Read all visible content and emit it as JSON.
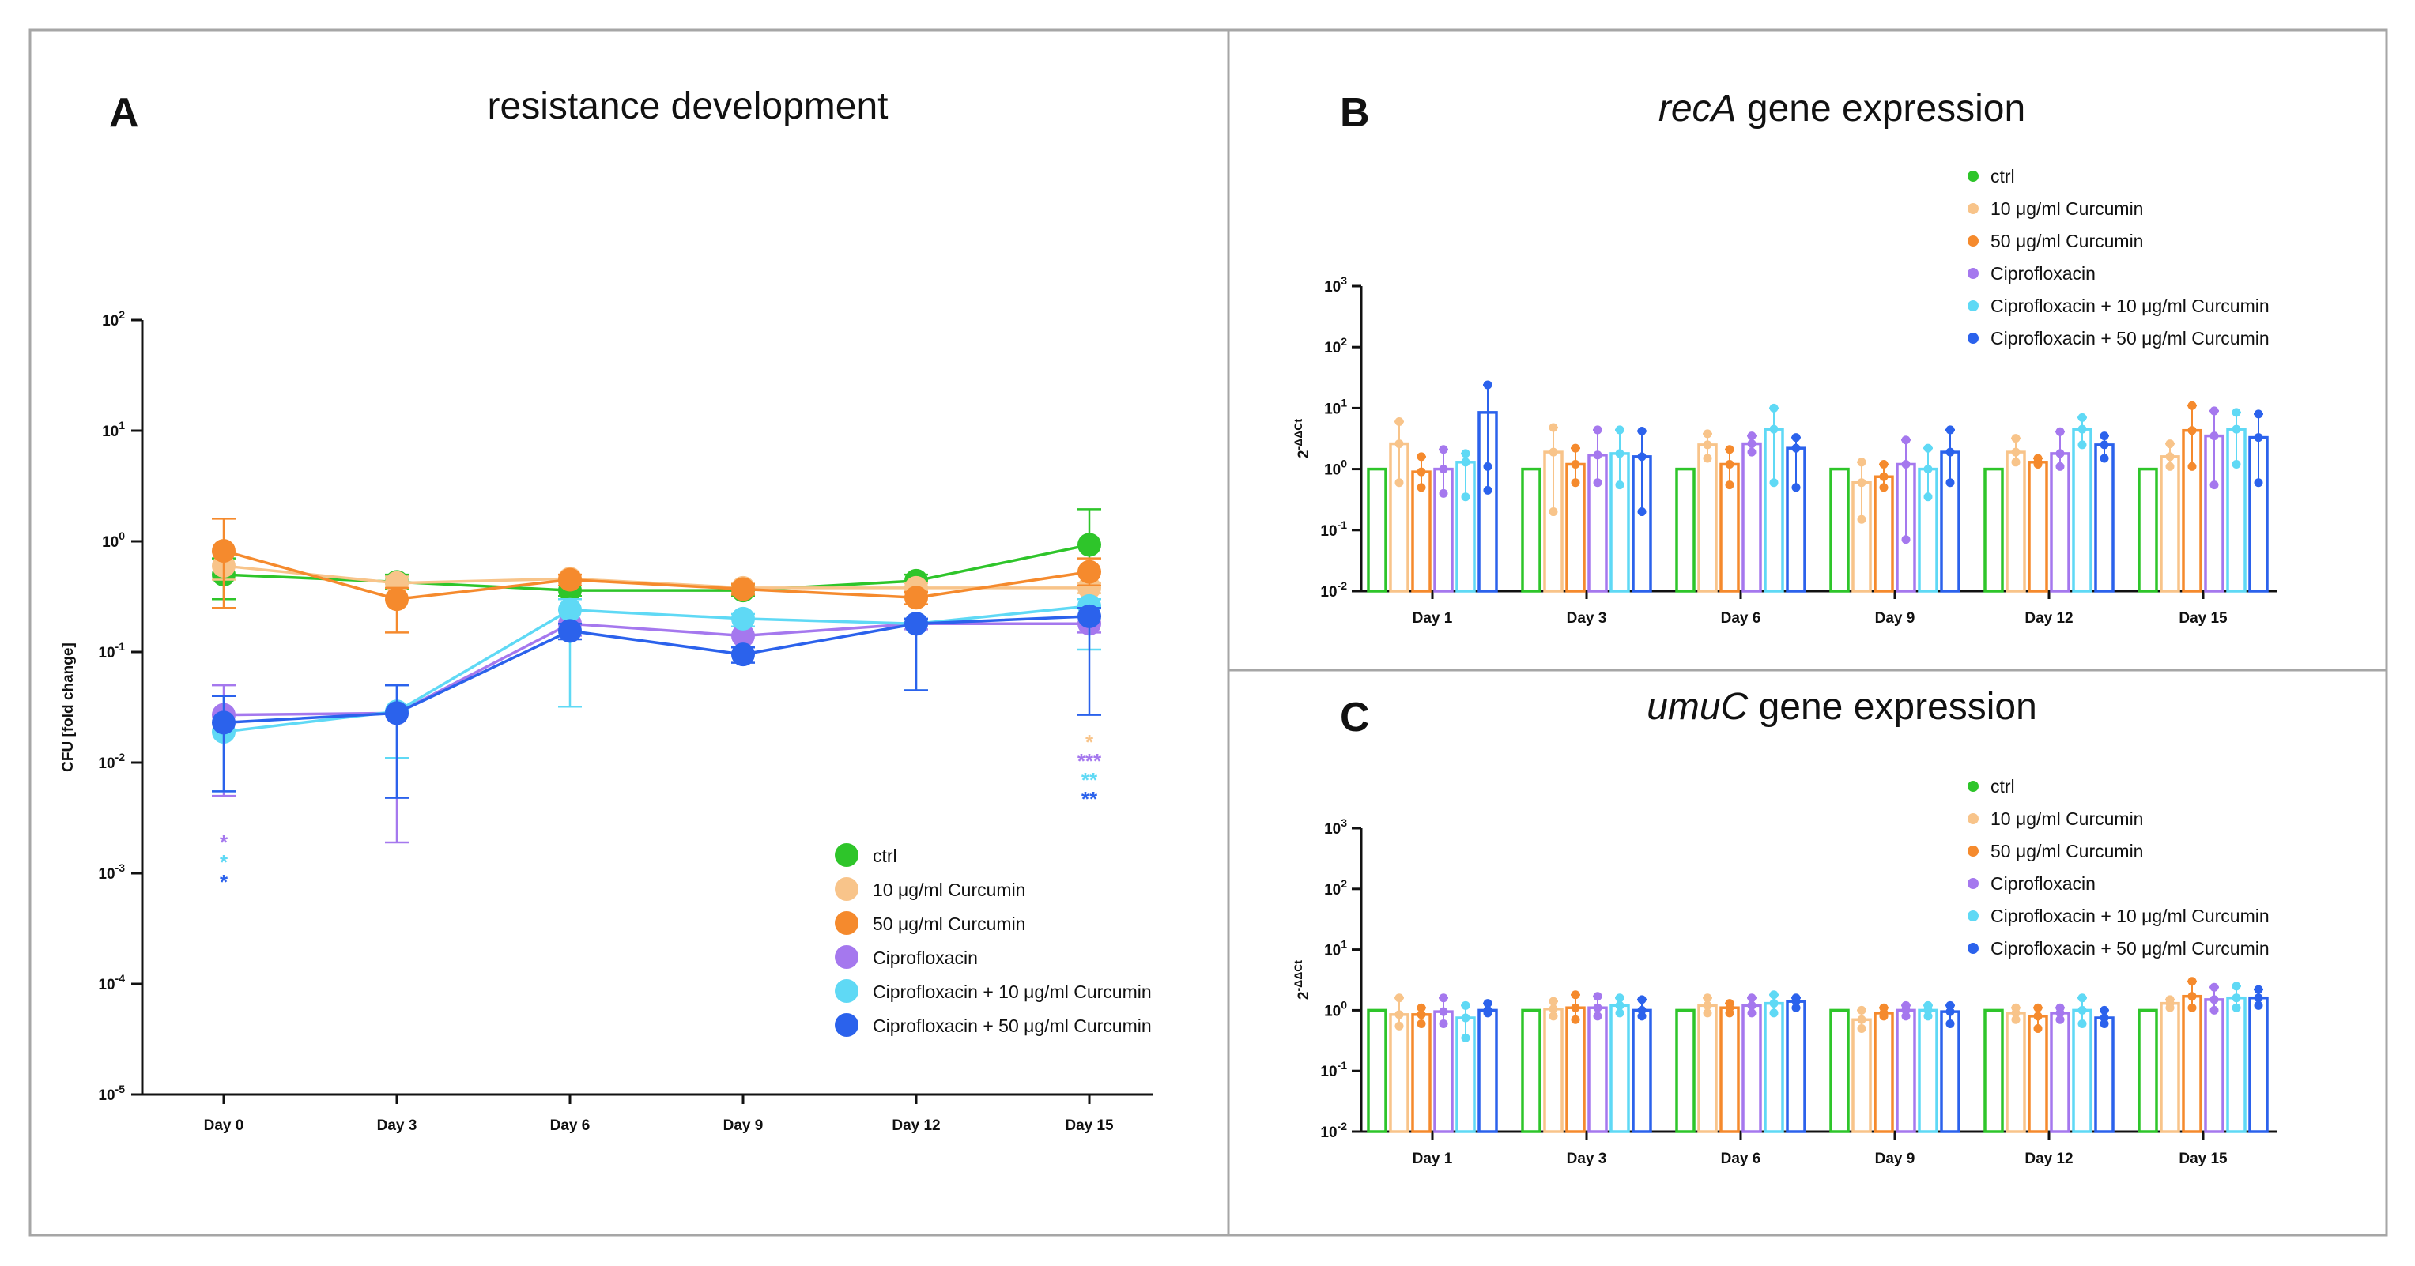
{
  "colors": {
    "ctrl": "#2ec52a",
    "cur10": "#f8c48a",
    "cur50": "#f58a2d",
    "cipro": "#a578ee",
    "cipro_cur10": "#5fd9f5",
    "cipro_cur50": "#2b62ec"
  },
  "legend": [
    {
      "key": "ctrl",
      "label": "ctrl",
      "color": "#2ec52a"
    },
    {
      "key": "cur10",
      "label": "10 μg/ml Curcumin",
      "color": "#f8c48a"
    },
    {
      "key": "cur50",
      "label": "50 μg/ml Curcumin",
      "color": "#f58a2d"
    },
    {
      "key": "cipro",
      "label": "Ciprofloxacin",
      "color": "#a578ee"
    },
    {
      "key": "cipro_cur10",
      "label": "Ciprofloxacin + 10 μg/ml Curcumin",
      "color": "#5fd9f5"
    },
    {
      "key": "cipro_cur50",
      "label": "Ciprofloxacin + 50 μg/ml Curcumin",
      "color": "#2b62ec"
    }
  ],
  "chart_data": [
    {
      "id": "A",
      "letter": "A",
      "type": "line",
      "title": "resistance development",
      "ylabel": "CFU [fold change]",
      "yscale": "log",
      "ylim_exp": [
        -5,
        2
      ],
      "ytick_labels": [
        "10-5",
        "10-4",
        "10-3",
        "10-2",
        "10-1",
        "100",
        "101",
        "102"
      ],
      "categories": [
        "Day 0",
        "Day 3",
        "Day 6",
        "Day 9",
        "Day 12",
        "Day 15"
      ],
      "series": [
        {
          "key": "ctrl",
          "name": "ctrl",
          "values": [
            0.5,
            0.43,
            0.36,
            0.36,
            0.44,
            0.93
          ],
          "err_hi": [
            0.7,
            0.5,
            0.4,
            0.4,
            0.5,
            1.95
          ],
          "err_lo": [
            0.3,
            0.37,
            0.32,
            0.32,
            0.39,
            0.4
          ]
        },
        {
          "key": "cur10",
          "name": "10 μg/ml Curcumin",
          "values": [
            0.6,
            0.42,
            0.46,
            0.38,
            0.38,
            0.38
          ],
          "err_hi": [
            0.8,
            0.48,
            0.5,
            0.42,
            0.42,
            0.42
          ],
          "err_lo": [
            0.45,
            0.38,
            0.42,
            0.34,
            0.34,
            0.34
          ]
        },
        {
          "key": "cur50",
          "name": "50 μg/ml Curcumin",
          "values": [
            0.82,
            0.3,
            0.45,
            0.37,
            0.31,
            0.53
          ],
          "err_hi": [
            1.6,
            0.38,
            0.5,
            0.41,
            0.35,
            0.7
          ],
          "err_lo": [
            0.25,
            0.15,
            0.4,
            0.33,
            0.27,
            0.4
          ]
        },
        {
          "key": "cipro",
          "name": "Ciprofloxacin",
          "values": [
            0.027,
            0.028,
            0.18,
            0.14,
            0.18,
            0.18
          ],
          "err_hi": [
            0.05,
            0.05,
            0.24,
            0.17,
            0.2,
            0.21
          ],
          "err_lo": [
            0.005,
            0.0019,
            0.14,
            0.11,
            0.16,
            0.15
          ]
        },
        {
          "key": "cipro_cur10",
          "name": "Ciprofloxacin + 10 μg/ml Curcumin",
          "values": [
            0.019,
            0.029,
            0.24,
            0.2,
            0.18,
            0.26
          ],
          "err_hi": [
            0.04,
            0.05,
            0.3,
            0.22,
            0.2,
            0.3
          ],
          "err_lo": [
            0.0055,
            0.011,
            0.032,
            0.17,
            0.045,
            0.105
          ]
        },
        {
          "key": "cipro_cur50",
          "name": "Ciprofloxacin + 50 μg/ml Curcumin",
          "values": [
            0.023,
            0.028,
            0.155,
            0.095,
            0.18,
            0.21
          ],
          "err_hi": [
            0.04,
            0.05,
            0.18,
            0.11,
            0.2,
            0.25
          ],
          "err_lo": [
            0.0055,
            0.0048,
            0.13,
            0.08,
            0.045,
            0.027
          ]
        }
      ],
      "significance": [
        {
          "category": "Day 0",
          "series": "cipro",
          "label": "*"
        },
        {
          "category": "Day 0",
          "series": "cipro_cur10",
          "label": "*"
        },
        {
          "category": "Day 0",
          "series": "cipro_cur50",
          "label": "*"
        },
        {
          "category": "Day 15",
          "series": "cur10",
          "label": "*"
        },
        {
          "category": "Day 15",
          "series": "cipro",
          "label": "***"
        },
        {
          "category": "Day 15",
          "series": "cipro_cur10",
          "label": "**"
        },
        {
          "category": "Day 15",
          "series": "cipro_cur50",
          "label": "**"
        }
      ]
    },
    {
      "id": "B",
      "letter": "B",
      "type": "bar",
      "title_italic": "recA",
      "title_rest": " gene expression",
      "ylabel": "2-ΔΔCt",
      "yscale": "log",
      "ylim_exp": [
        -2,
        3
      ],
      "ytick_labels": [
        "10-2",
        "10-1",
        "100",
        "101",
        "102",
        "103"
      ],
      "categories": [
        "Day 1",
        "Day 3",
        "Day 6",
        "Day 9",
        "Day 12",
        "Day 15"
      ],
      "series": [
        {
          "key": "ctrl",
          "name": "ctrl",
          "values": [
            1,
            1,
            1,
            1,
            1,
            1
          ],
          "points": [
            [
              1,
              1,
              1
            ],
            [
              1,
              1,
              1
            ],
            [
              1,
              1,
              1
            ],
            [
              1,
              1,
              1
            ],
            [
              1,
              1,
              1
            ],
            [
              1,
              1,
              1
            ]
          ]
        },
        {
          "key": "cur10",
          "name": "10 μg/ml Curcumin",
          "values": [
            2.6,
            1.9,
            2.5,
            0.6,
            1.9,
            1.6
          ],
          "points": [
            [
              6,
              2.6,
              0.6
            ],
            [
              4.8,
              1.9,
              0.2
            ],
            [
              3.8,
              2.5,
              1.5
            ],
            [
              1.3,
              0.6,
              0.15
            ],
            [
              3.2,
              1.9,
              1.3
            ],
            [
              2.6,
              1.6,
              1.1
            ]
          ]
        },
        {
          "key": "cur50",
          "name": "50 μg/ml Curcumin",
          "values": [
            0.9,
            1.2,
            1.2,
            0.75,
            1.3,
            4.3
          ],
          "points": [
            [
              1.6,
              0.9,
              0.5
            ],
            [
              2.2,
              1.2,
              0.6
            ],
            [
              2.1,
              1.2,
              0.55
            ],
            [
              1.2,
              0.75,
              0.5
            ],
            [
              1.5,
              1.3,
              1.2
            ],
            [
              11,
              4.3,
              1.1
            ]
          ]
        },
        {
          "key": "cipro",
          "name": "Ciprofloxacin",
          "values": [
            1.0,
            1.7,
            2.6,
            1.2,
            1.8,
            3.5
          ],
          "points": [
            [
              2.1,
              1.0,
              0.4
            ],
            [
              4.4,
              1.7,
              0.6
            ],
            [
              3.5,
              2.6,
              1.9
            ],
            [
              3.0,
              1.2,
              0.07
            ],
            [
              4.1,
              1.8,
              1.1
            ],
            [
              9,
              3.5,
              0.55
            ]
          ]
        },
        {
          "key": "cipro_cur10",
          "name": "Ciprofloxacin + 10 μg/ml Curcumin",
          "values": [
            1.3,
            1.8,
            4.5,
            1.0,
            4.5,
            4.5
          ],
          "points": [
            [
              1.8,
              1.3,
              0.35
            ],
            [
              4.4,
              1.8,
              0.55
            ],
            [
              10,
              4.5,
              0.6
            ],
            [
              2.2,
              1.0,
              0.35
            ],
            [
              7,
              4.5,
              2.5
            ],
            [
              8.5,
              4.5,
              1.2
            ]
          ]
        },
        {
          "key": "cipro_cur50",
          "name": "Ciprofloxacin + 50 μg/ml Curcumin",
          "values": [
            8.5,
            1.6,
            2.2,
            1.9,
            2.5,
            3.3
          ],
          "points": [
            [
              24,
              1.1,
              0.45
            ],
            [
              4.2,
              1.6,
              0.2
            ],
            [
              3.3,
              2.2,
              0.5
            ],
            [
              4.4,
              1.9,
              0.6
            ],
            [
              3.5,
              2.5,
              1.5
            ],
            [
              8,
              3.3,
              0.6
            ]
          ]
        }
      ]
    },
    {
      "id": "C",
      "letter": "C",
      "type": "bar",
      "title_italic": "umuC",
      "title_rest": " gene expression",
      "ylabel": "2-ΔΔCt",
      "yscale": "log",
      "ylim_exp": [
        -2,
        3
      ],
      "ytick_labels": [
        "10-2",
        "10-1",
        "100",
        "101",
        "102",
        "103"
      ],
      "categories": [
        "Day 1",
        "Day 3",
        "Day 6",
        "Day 9",
        "Day 12",
        "Day 15"
      ],
      "series": [
        {
          "key": "ctrl",
          "name": "ctrl",
          "values": [
            1,
            1,
            1,
            1,
            1,
            1
          ],
          "points": [
            [
              1,
              1,
              1
            ],
            [
              1,
              1,
              1
            ],
            [
              1,
              1,
              1
            ],
            [
              1,
              1,
              1
            ],
            [
              1,
              1,
              1
            ],
            [
              1,
              1,
              1
            ]
          ]
        },
        {
          "key": "cur10",
          "name": "10 μg/ml Curcumin",
          "values": [
            0.85,
            1.05,
            1.2,
            0.7,
            0.9,
            1.3
          ],
          "points": [
            [
              1.6,
              0.85,
              0.55
            ],
            [
              1.4,
              1.05,
              0.8
            ],
            [
              1.6,
              1.2,
              0.9
            ],
            [
              1.0,
              0.7,
              0.5
            ],
            [
              1.1,
              0.9,
              0.7
            ],
            [
              1.5,
              1.3,
              1.1
            ]
          ]
        },
        {
          "key": "cur50",
          "name": "50 μg/ml Curcumin",
          "values": [
            0.85,
            1.1,
            1.1,
            0.9,
            0.8,
            1.7
          ],
          "points": [
            [
              1.1,
              0.85,
              0.6
            ],
            [
              1.8,
              1.1,
              0.7
            ],
            [
              1.3,
              1.1,
              0.9
            ],
            [
              1.1,
              0.9,
              0.8
            ],
            [
              1.1,
              0.8,
              0.5
            ],
            [
              3.0,
              1.7,
              1.1
            ]
          ]
        },
        {
          "key": "cipro",
          "name": "Ciprofloxacin",
          "values": [
            0.95,
            1.1,
            1.2,
            1.0,
            0.9,
            1.5
          ],
          "points": [
            [
              1.6,
              0.95,
              0.6
            ],
            [
              1.7,
              1.1,
              0.8
            ],
            [
              1.6,
              1.2,
              0.9
            ],
            [
              1.2,
              1.0,
              0.8
            ],
            [
              1.1,
              0.9,
              0.7
            ],
            [
              2.4,
              1.5,
              1.0
            ]
          ]
        },
        {
          "key": "cipro_cur10",
          "name": "Ciprofloxacin + 10 μg/ml Curcumin",
          "values": [
            0.75,
            1.2,
            1.3,
            1.0,
            1.0,
            1.6
          ],
          "points": [
            [
              1.2,
              0.75,
              0.35
            ],
            [
              1.6,
              1.2,
              0.9
            ],
            [
              1.8,
              1.3,
              0.9
            ],
            [
              1.2,
              1.0,
              0.8
            ],
            [
              1.6,
              1.0,
              0.6
            ],
            [
              2.5,
              1.6,
              1.1
            ]
          ]
        },
        {
          "key": "cipro_cur50",
          "name": "Ciprofloxacin + 50 μg/ml Curcumin",
          "values": [
            1.0,
            1.0,
            1.4,
            0.95,
            0.75,
            1.6
          ],
          "points": [
            [
              1.3,
              1.0,
              0.9
            ],
            [
              1.5,
              1.0,
              0.8
            ],
            [
              1.6,
              1.4,
              1.1
            ],
            [
              1.2,
              0.95,
              0.6
            ],
            [
              1.0,
              0.75,
              0.6
            ],
            [
              2.2,
              1.6,
              1.2
            ]
          ]
        }
      ]
    }
  ]
}
